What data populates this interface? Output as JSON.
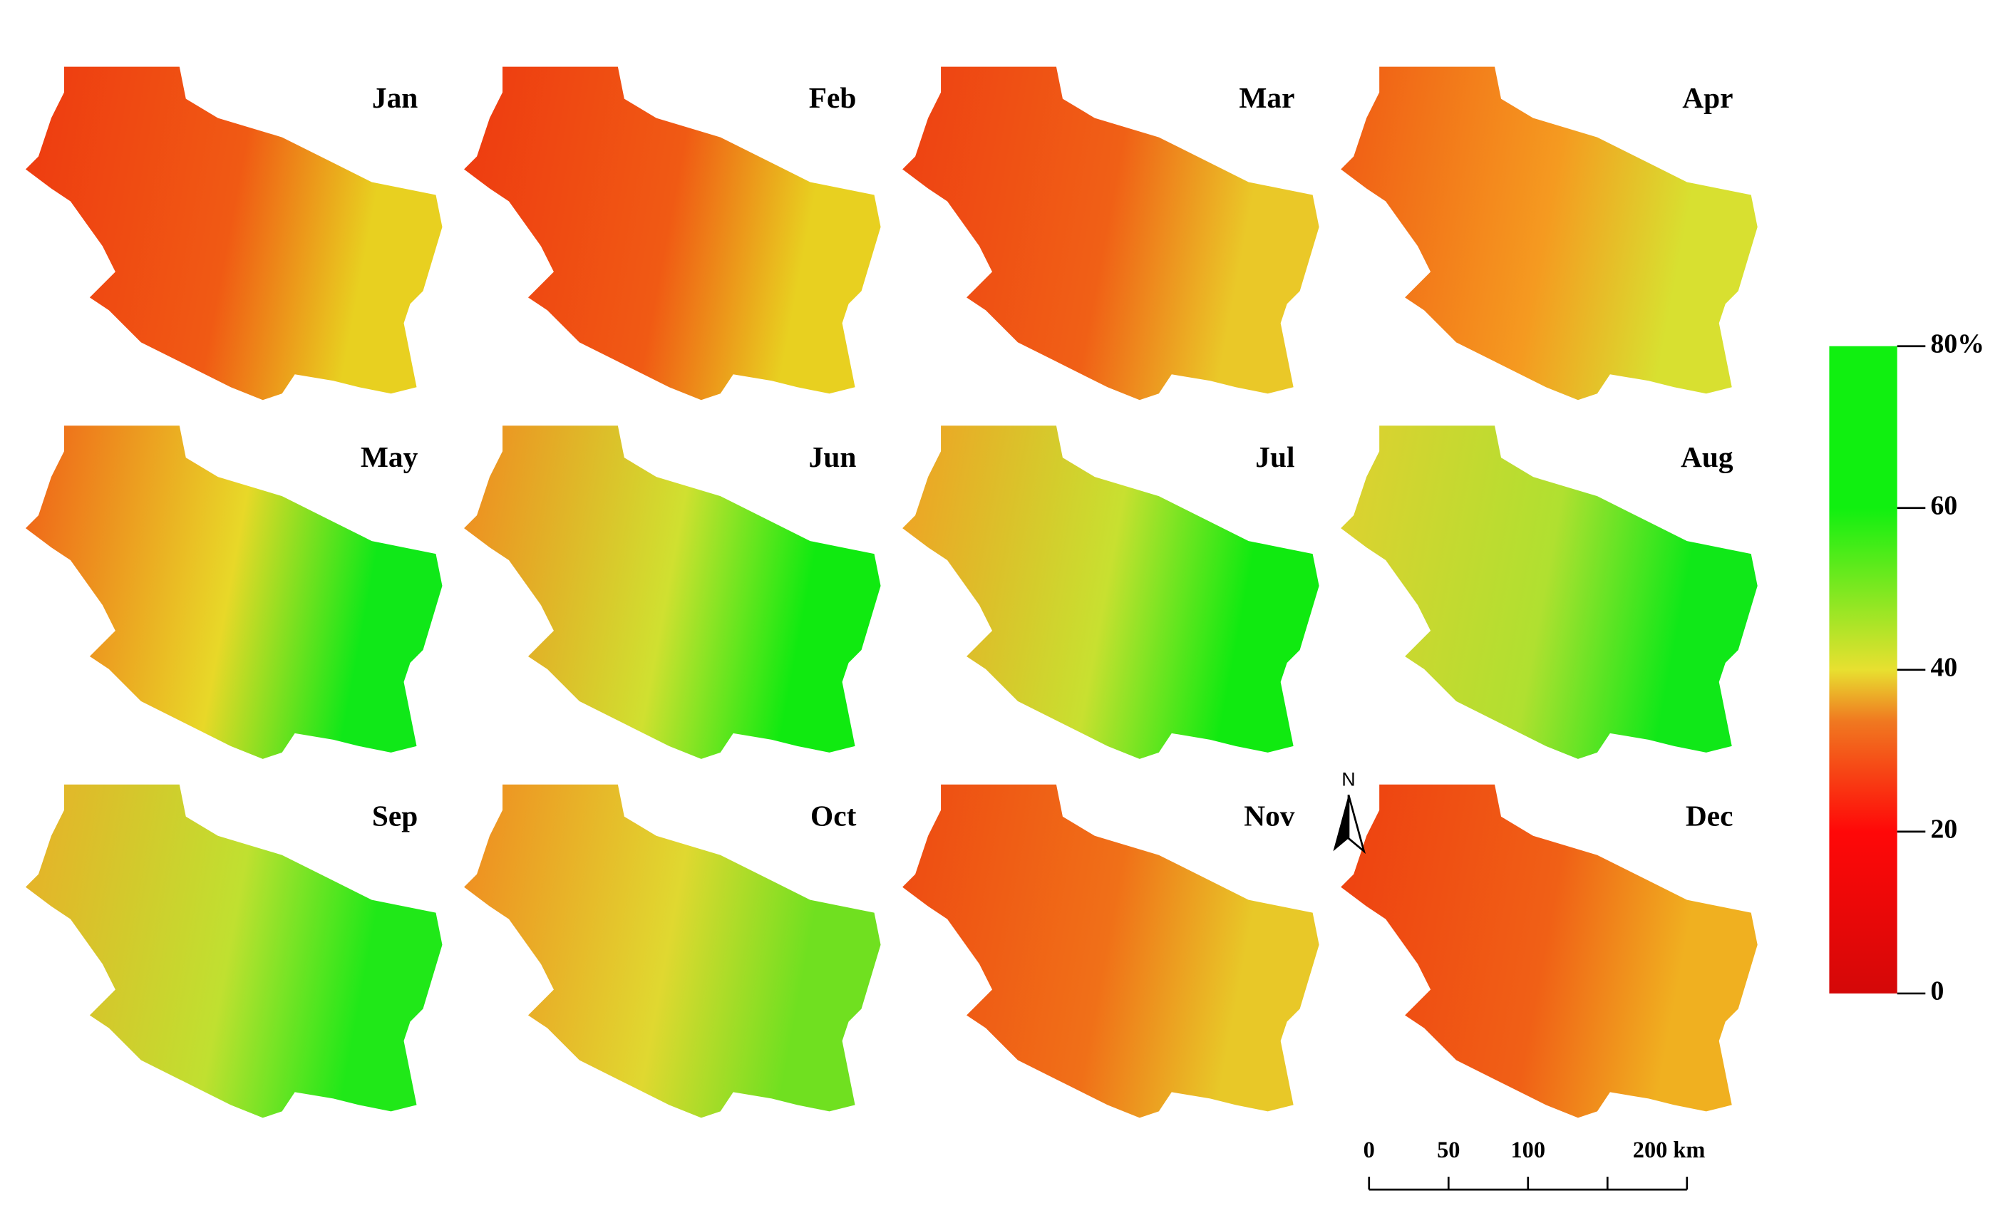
{
  "months": [
    "Jan",
    "Feb",
    "Mar",
    "Apr",
    "May",
    "Jun",
    "Jul",
    "Aug",
    "Sep",
    "Oct",
    "Nov",
    "Dec"
  ],
  "colorbar": {
    "range": [
      0,
      80
    ],
    "ticks": [
      0,
      20,
      40,
      60,
      {
        "value": 80,
        "label": "80%"
      }
    ]
  },
  "north_label": "N",
  "scale_bar": {
    "range": [
      0,
      200
    ],
    "ticks": [
      0,
      50,
      100,
      {
        "value": 150,
        "label": null
      },
      {
        "value": 200,
        "label": "200 km"
      }
    ]
  }
}
